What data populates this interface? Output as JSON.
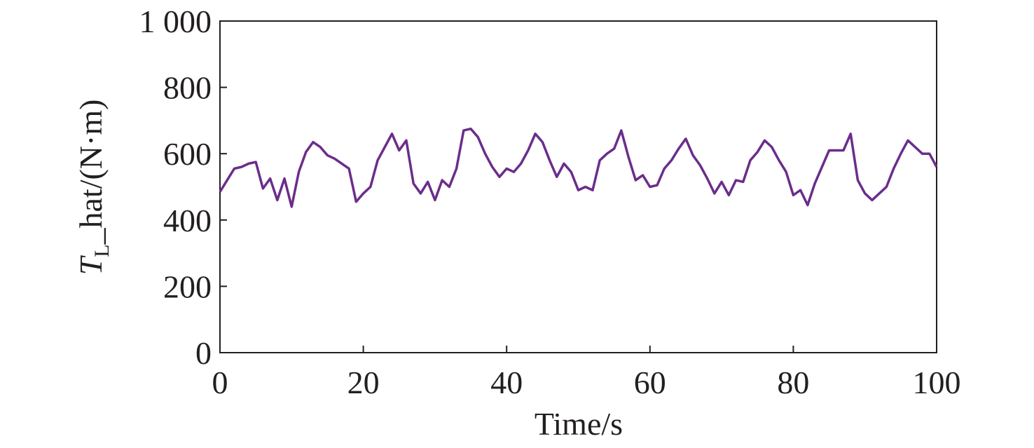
{
  "chart_data": {
    "type": "line",
    "x_label": "Time/s",
    "y_label": {
      "symbol": "T",
      "subscript": "L",
      "rest": "_hat/(N·m)"
    },
    "xlim": [
      0,
      100
    ],
    "xticks": [
      0,
      20,
      40,
      60,
      80,
      100
    ],
    "ylim": [
      0,
      1000
    ],
    "yticks": [
      0,
      200,
      400,
      600,
      800,
      {
        "value": 1000,
        "label": "1 000"
      }
    ],
    "grid": false,
    "x": [
      0,
      1,
      2,
      3,
      4,
      5,
      6,
      7,
      8,
      9,
      10,
      11,
      12,
      13,
      14,
      15,
      16,
      17,
      18,
      19,
      20,
      21,
      22,
      23,
      24,
      25,
      26,
      27,
      28,
      29,
      30,
      31,
      32,
      33,
      34,
      35,
      36,
      37,
      38,
      39,
      40,
      41,
      42,
      43,
      44,
      45,
      46,
      47,
      48,
      49,
      50,
      51,
      52,
      53,
      54,
      55,
      56,
      57,
      58,
      59,
      60,
      61,
      62,
      63,
      64,
      65,
      66,
      67,
      68,
      69,
      70,
      71,
      72,
      73,
      74,
      75,
      76,
      77,
      78,
      79,
      80,
      81,
      82,
      83,
      84,
      85,
      86,
      87,
      88,
      89,
      90,
      91,
      92,
      93,
      94,
      95,
      96,
      97,
      98,
      99,
      100
    ],
    "series": [
      {
        "color": "#6b2d8b",
        "values": [
          485,
          520,
          555,
          560,
          570,
          575,
          495,
          525,
          460,
          525,
          440,
          545,
          605,
          635,
          620,
          595,
          585,
          570,
          555,
          455,
          480,
          500,
          580,
          620,
          660,
          610,
          640,
          510,
          480,
          515,
          460,
          520,
          500,
          555,
          670,
          675,
          650,
          600,
          560,
          530,
          555,
          545,
          570,
          610,
          660,
          635,
          580,
          530,
          570,
          545,
          490,
          500,
          490,
          580,
          600,
          615,
          670,
          590,
          520,
          535,
          500,
          505,
          555,
          580,
          615,
          645,
          595,
          565,
          525,
          480,
          515,
          475,
          520,
          515,
          580,
          605,
          640,
          620,
          580,
          545,
          475,
          490,
          445,
          510,
          560,
          610,
          610,
          610,
          660,
          520,
          480,
          460,
          480,
          500,
          555,
          600,
          640,
          620,
          600,
          600,
          560
        ]
      }
    ]
  }
}
